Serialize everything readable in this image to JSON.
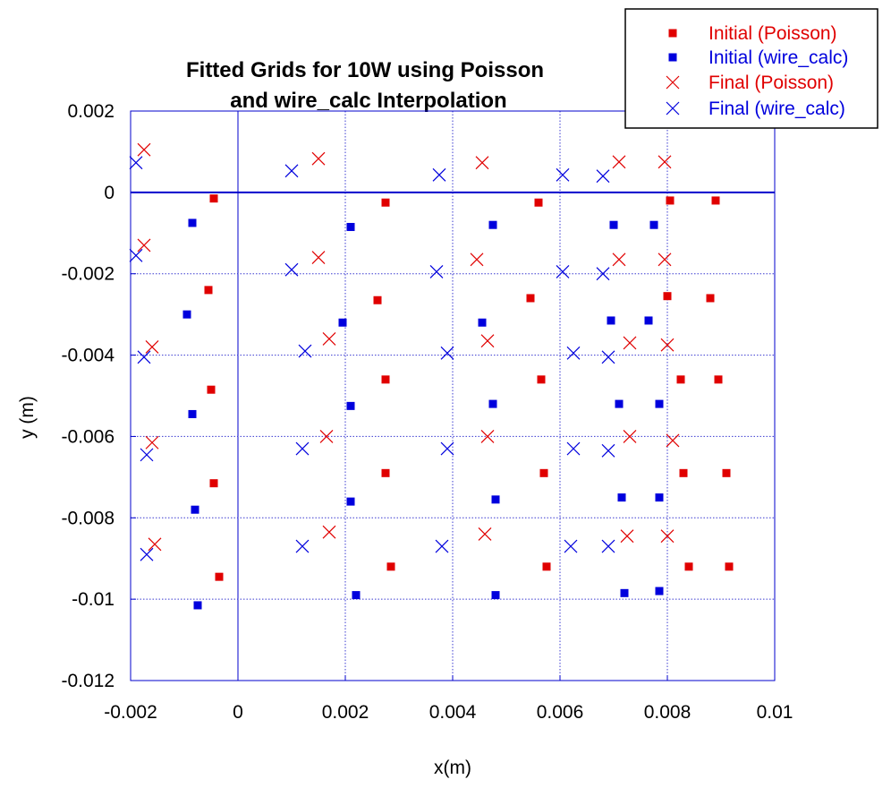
{
  "chart_data": {
    "type": "scatter",
    "title": [
      "Fitted Grids for 10W using Poisson",
      "and wire_calc Interpolation"
    ],
    "xlabel": "x(m)",
    "ylabel": "y (m)",
    "xlim": [
      -0.002,
      0.01
    ],
    "ylim": [
      -0.012,
      0.002
    ],
    "grid": true,
    "xticks": [
      -0.002,
      0,
      0.002,
      0.004,
      0.006,
      0.008,
      0.01
    ],
    "yticks": [
      0.002,
      0,
      -0.002,
      -0.004,
      -0.006,
      -0.008,
      -0.01,
      -0.012
    ],
    "xtick_labels": [
      "-0.002",
      "0",
      "0.002",
      "0.004",
      "0.006",
      "0.008",
      "0.01"
    ],
    "ytick_labels": [
      "0.002",
      "0",
      "-0.002",
      "-0.004",
      "-0.006",
      "-0.008",
      "-0.01",
      "-0.012"
    ],
    "legend_position": "top-right",
    "series": [
      {
        "name": "Initial (Poisson)",
        "marker": "square",
        "color": "#e00000",
        "points": [
          [
            -0.00045,
            -0.00015
          ],
          [
            0.00275,
            -0.00025
          ],
          [
            0.0056,
            -0.00025
          ],
          [
            0.00805,
            -0.0002
          ],
          [
            0.0089,
            -0.0002
          ],
          [
            -0.00055,
            -0.0024
          ],
          [
            0.0026,
            -0.00265
          ],
          [
            0.00545,
            -0.0026
          ],
          [
            0.008,
            -0.00255
          ],
          [
            0.0088,
            -0.0026
          ],
          [
            -0.0005,
            -0.00485
          ],
          [
            0.00275,
            -0.0046
          ],
          [
            0.00565,
            -0.0046
          ],
          [
            0.00825,
            -0.0046
          ],
          [
            0.00895,
            -0.0046
          ],
          [
            -0.00045,
            -0.00715
          ],
          [
            0.00275,
            -0.0069
          ],
          [
            0.0057,
            -0.0069
          ],
          [
            0.0083,
            -0.0069
          ],
          [
            0.0091,
            -0.0069
          ],
          [
            -0.00035,
            -0.00945
          ],
          [
            0.00285,
            -0.0092
          ],
          [
            0.00575,
            -0.0092
          ],
          [
            0.0084,
            -0.0092
          ],
          [
            0.00915,
            -0.0092
          ]
        ]
      },
      {
        "name": "Initial (wire_calc)",
        "marker": "square",
        "color": "#0000dd",
        "points": [
          [
            -0.00085,
            -0.00075
          ],
          [
            0.0021,
            -0.00085
          ],
          [
            0.00475,
            -0.0008
          ],
          [
            0.007,
            -0.0008
          ],
          [
            0.00775,
            -0.0008
          ],
          [
            -0.00095,
            -0.003
          ],
          [
            0.00195,
            -0.0032
          ],
          [
            0.00455,
            -0.0032
          ],
          [
            0.00695,
            -0.00315
          ],
          [
            0.00765,
            -0.00315
          ],
          [
            -0.00085,
            -0.00545
          ],
          [
            0.0021,
            -0.00525
          ],
          [
            0.00475,
            -0.0052
          ],
          [
            0.0071,
            -0.0052
          ],
          [
            0.00785,
            -0.0052
          ],
          [
            -0.0008,
            -0.0078
          ],
          [
            0.0021,
            -0.0076
          ],
          [
            0.0048,
            -0.00755
          ],
          [
            0.00715,
            -0.0075
          ],
          [
            0.00785,
            -0.0075
          ],
          [
            -0.00075,
            -0.01015
          ],
          [
            0.0022,
            -0.0099
          ],
          [
            0.0048,
            -0.0099
          ],
          [
            0.0072,
            -0.00985
          ],
          [
            0.00785,
            -0.0098
          ]
        ]
      },
      {
        "name": "Final (Poisson)",
        "marker": "x",
        "color": "#e00000",
        "points": [
          [
            -0.00175,
            0.00105
          ],
          [
            0.0015,
            0.00083
          ],
          [
            0.00455,
            0.00073
          ],
          [
            0.0071,
            0.00075
          ],
          [
            0.00795,
            0.00075
          ],
          [
            -0.00175,
            -0.0013
          ],
          [
            0.0015,
            -0.0016
          ],
          [
            0.00445,
            -0.00165
          ],
          [
            0.0071,
            -0.00165
          ],
          [
            0.00795,
            -0.00165
          ],
          [
            -0.0016,
            -0.0038
          ],
          [
            0.0017,
            -0.0036
          ],
          [
            0.00465,
            -0.00365
          ],
          [
            0.0073,
            -0.0037
          ],
          [
            0.008,
            -0.00375
          ],
          [
            -0.0016,
            -0.00615
          ],
          [
            0.00165,
            -0.006
          ],
          [
            0.00465,
            -0.006
          ],
          [
            0.0073,
            -0.006
          ],
          [
            0.0081,
            -0.0061
          ],
          [
            -0.00155,
            -0.00865
          ],
          [
            0.0017,
            -0.00835
          ],
          [
            0.0046,
            -0.0084
          ],
          [
            0.00725,
            -0.00845
          ],
          [
            0.008,
            -0.00845
          ]
        ]
      },
      {
        "name": "Final (wire_calc)",
        "marker": "x",
        "color": "#0000dd",
        "points": [
          [
            -0.0019,
            0.00073
          ],
          [
            0.001,
            0.00053
          ],
          [
            0.00375,
            0.00043
          ],
          [
            0.00605,
            0.00043
          ],
          [
            0.0068,
            0.0004
          ],
          [
            -0.0019,
            -0.00155
          ],
          [
            0.001,
            -0.0019
          ],
          [
            0.0037,
            -0.00195
          ],
          [
            0.00605,
            -0.00195
          ],
          [
            0.0068,
            -0.002
          ],
          [
            -0.00175,
            -0.00405
          ],
          [
            0.00125,
            -0.0039
          ],
          [
            0.0039,
            -0.00395
          ],
          [
            0.00625,
            -0.00395
          ],
          [
            0.0069,
            -0.00405
          ],
          [
            -0.0017,
            -0.00645
          ],
          [
            0.0012,
            -0.0063
          ],
          [
            0.0039,
            -0.0063
          ],
          [
            0.00625,
            -0.0063
          ],
          [
            0.0069,
            -0.00635
          ],
          [
            -0.0017,
            -0.0089
          ],
          [
            0.0012,
            -0.0087
          ],
          [
            0.0038,
            -0.0087
          ],
          [
            0.0062,
            -0.0087
          ],
          [
            0.0069,
            -0.0087
          ]
        ]
      }
    ]
  }
}
